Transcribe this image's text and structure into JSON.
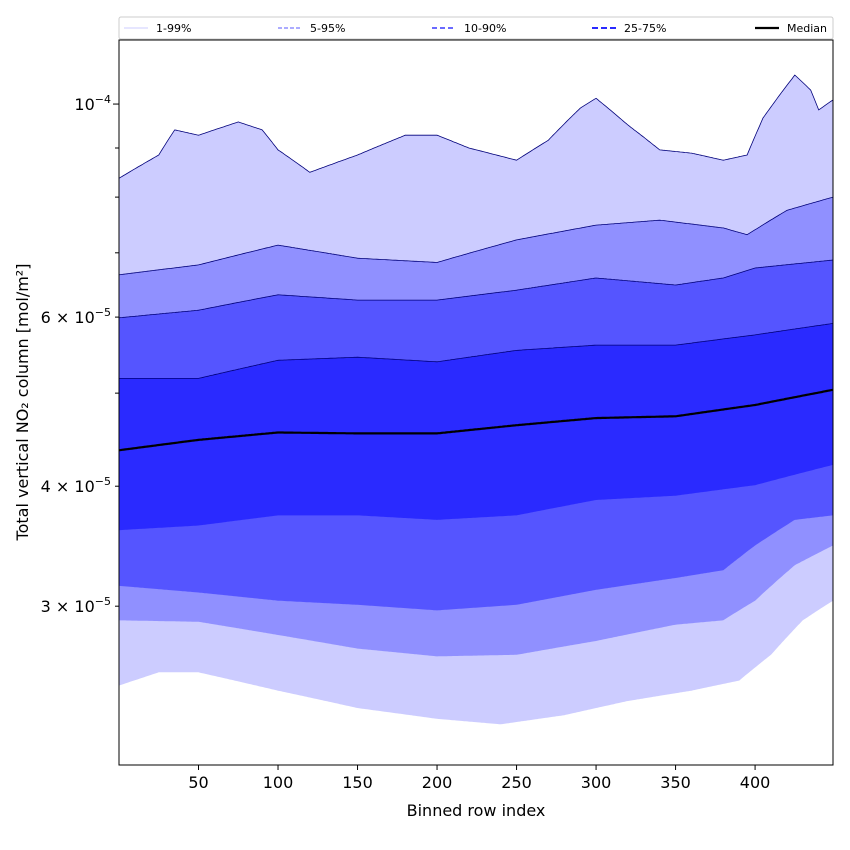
{
  "chart_data": {
    "type": "area",
    "title": "",
    "xlabel": "Binned row index",
    "ylabel": "Total vertical NO₂ column [mol/m²]",
    "yscale": "log",
    "xlim": [
      0,
      449
    ],
    "ylim": [
      2.05e-05,
      0.0001166
    ],
    "value_unit_scale": 1e-05,
    "x_ticks": [
      50,
      100,
      150,
      200,
      250,
      300,
      350,
      400
    ],
    "x_tick_labels": [
      "50",
      "100",
      "150",
      "200",
      "250",
      "300",
      "350",
      "400"
    ],
    "y_ticks": [
      {
        "value": 0.0001,
        "mant": "",
        "exp": "−4",
        "label": "10^-4"
      },
      {
        "value": 6e-05,
        "mant": "6 × ",
        "exp": "−5",
        "label": "6x10^-5"
      },
      {
        "value": 4e-05,
        "mant": "4 × ",
        "exp": "−5",
        "label": "4x10^-5"
      },
      {
        "value": 3e-05,
        "mant": "3 × ",
        "exp": "−5",
        "label": "3x10^-5"
      }
    ],
    "y_minor_ticks": [
      9e-05,
      8e-05,
      7e-05,
      5e-05
    ],
    "legend": {
      "placement": "top (above plot)",
      "entries": [
        {
          "label": "1-99%",
          "color": "#ccccff",
          "dash": "1,0"
        },
        {
          "label": "5-95%",
          "color": "#9090ff",
          "dash": "4,2"
        },
        {
          "label": "10-90%",
          "color": "#5555ff",
          "dash": "5,3"
        },
        {
          "label": "25-75%",
          "color": "#2a2aff",
          "dash": "6,3"
        },
        {
          "label": "Median",
          "color": "#000000",
          "dash": ""
        }
      ]
    },
    "bands": [
      {
        "name": "1-99%",
        "color": "#ccccff",
        "lower": "p1",
        "upper": "p99"
      },
      {
        "name": "5-95%",
        "color": "#9090ff",
        "lower": "p5",
        "upper": "p95"
      },
      {
        "name": "10-90%",
        "color": "#5555ff",
        "lower": "p10",
        "upper": "p90"
      },
      {
        "name": "25-75%",
        "color": "#2a2aff",
        "lower": "p25",
        "upper": "p75"
      }
    ],
    "series": {
      "p99": [
        [
          0,
          8.37
        ],
        [
          25,
          8.85
        ],
        [
          35,
          9.4
        ],
        [
          50,
          9.28
        ],
        [
          75,
          9.58
        ],
        [
          90,
          9.4
        ],
        [
          100,
          8.96
        ],
        [
          120,
          8.49
        ],
        [
          150,
          8.85
        ],
        [
          180,
          9.28
        ],
        [
          200,
          9.28
        ],
        [
          220,
          9.0
        ],
        [
          250,
          8.74
        ],
        [
          270,
          9.17
        ],
        [
          290,
          9.9
        ],
        [
          300,
          10.14
        ],
        [
          320,
          9.51
        ],
        [
          340,
          8.96
        ],
        [
          360,
          8.89
        ],
        [
          380,
          8.74
        ],
        [
          395,
          8.85
        ],
        [
          405,
          9.67
        ],
        [
          425,
          10.72
        ],
        [
          435,
          10.34
        ],
        [
          440,
          9.86
        ],
        [
          449,
          10.1
        ]
      ],
      "p95": [
        [
          0,
          6.64
        ],
        [
          50,
          6.8
        ],
        [
          100,
          7.13
        ],
        [
          150,
          6.91
        ],
        [
          200,
          6.84
        ],
        [
          250,
          7.22
        ],
        [
          300,
          7.48
        ],
        [
          340,
          7.57
        ],
        [
          380,
          7.43
        ],
        [
          395,
          7.31
        ],
        [
          420,
          7.75
        ],
        [
          449,
          8.0
        ]
      ],
      "p90": [
        [
          0,
          5.99
        ],
        [
          50,
          6.1
        ],
        [
          100,
          6.33
        ],
        [
          150,
          6.25
        ],
        [
          200,
          6.25
        ],
        [
          250,
          6.4
        ],
        [
          300,
          6.59
        ],
        [
          350,
          6.48
        ],
        [
          380,
          6.59
        ],
        [
          400,
          6.75
        ],
        [
          449,
          6.88
        ]
      ],
      "p75": [
        [
          0,
          5.18
        ],
        [
          50,
          5.18
        ],
        [
          100,
          5.41
        ],
        [
          150,
          5.45
        ],
        [
          200,
          5.39
        ],
        [
          250,
          5.54
        ],
        [
          300,
          5.61
        ],
        [
          350,
          5.61
        ],
        [
          400,
          5.75
        ],
        [
          449,
          5.91
        ]
      ],
      "p50": [
        [
          0,
          4.36
        ],
        [
          50,
          4.47
        ],
        [
          100,
          4.55
        ],
        [
          150,
          4.54
        ],
        [
          200,
          4.54
        ],
        [
          250,
          4.63
        ],
        [
          300,
          4.71
        ],
        [
          350,
          4.73
        ],
        [
          400,
          4.86
        ],
        [
          449,
          5.04
        ]
      ],
      "p25": [
        [
          0,
          3.6
        ],
        [
          50,
          3.64
        ],
        [
          100,
          3.73
        ],
        [
          150,
          3.73
        ],
        [
          200,
          3.69
        ],
        [
          250,
          3.73
        ],
        [
          300,
          3.87
        ],
        [
          350,
          3.91
        ],
        [
          400,
          4.01
        ],
        [
          449,
          4.21
        ]
      ],
      "p10": [
        [
          0,
          3.15
        ],
        [
          50,
          3.1
        ],
        [
          100,
          3.04
        ],
        [
          150,
          3.01
        ],
        [
          200,
          2.97
        ],
        [
          250,
          3.01
        ],
        [
          300,
          3.12
        ],
        [
          350,
          3.21
        ],
        [
          380,
          3.27
        ],
        [
          400,
          3.47
        ],
        [
          425,
          3.69
        ],
        [
          449,
          3.73
        ]
      ],
      "p5": [
        [
          0,
          2.9
        ],
        [
          50,
          2.89
        ],
        [
          100,
          2.8
        ],
        [
          150,
          2.71
        ],
        [
          200,
          2.66
        ],
        [
          250,
          2.67
        ],
        [
          300,
          2.76
        ],
        [
          350,
          2.87
        ],
        [
          380,
          2.9
        ],
        [
          400,
          3.04
        ],
        [
          425,
          3.31
        ],
        [
          449,
          3.47
        ]
      ],
      "p1": [
        [
          0,
          2.48
        ],
        [
          25,
          2.56
        ],
        [
          50,
          2.56
        ],
        [
          100,
          2.45
        ],
        [
          150,
          2.35
        ],
        [
          200,
          2.29
        ],
        [
          240,
          2.26
        ],
        [
          280,
          2.31
        ],
        [
          320,
          2.39
        ],
        [
          360,
          2.45
        ],
        [
          390,
          2.51
        ],
        [
          410,
          2.67
        ],
        [
          430,
          2.9
        ],
        [
          449,
          3.04
        ]
      ]
    }
  }
}
